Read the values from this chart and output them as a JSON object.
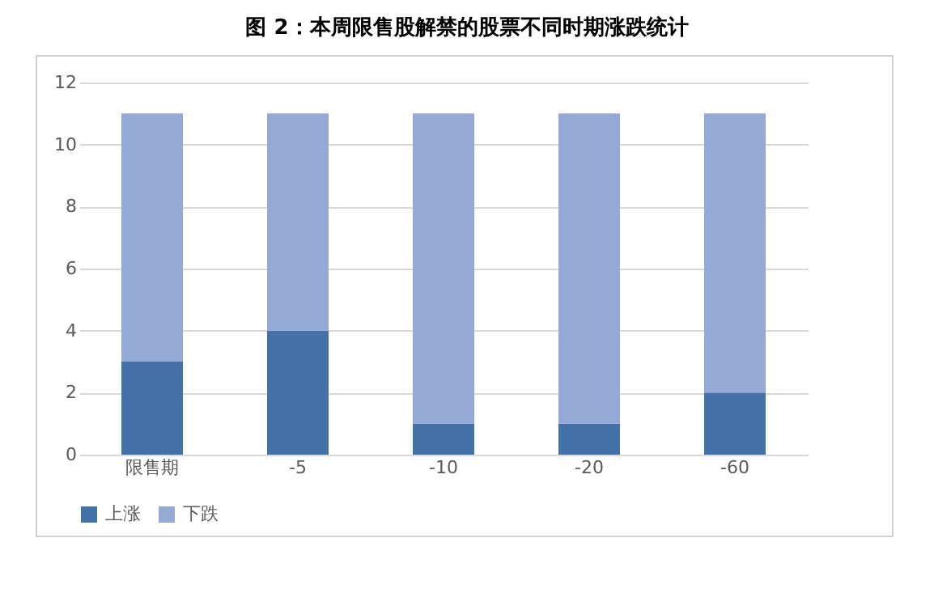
{
  "chart_data": {
    "type": "bar",
    "title": "图 2：本周限售股解禁的股票不同时期涨跌统计",
    "categories": [
      "限售期",
      "-5",
      "-10",
      "-20",
      "-60"
    ],
    "stacked": true,
    "series": [
      {
        "name": "上涨",
        "color": "#4472a8",
        "values": [
          3,
          4,
          1,
          1,
          2
        ]
      },
      {
        "name": "下跌",
        "color": "#94aad4",
        "values": [
          8,
          7,
          10,
          10,
          9
        ]
      }
    ],
    "ylim": [
      0,
      12
    ],
    "yticks": [
      0,
      2,
      4,
      6,
      8,
      10,
      12
    ],
    "grid": "y",
    "legend": "bottom"
  }
}
